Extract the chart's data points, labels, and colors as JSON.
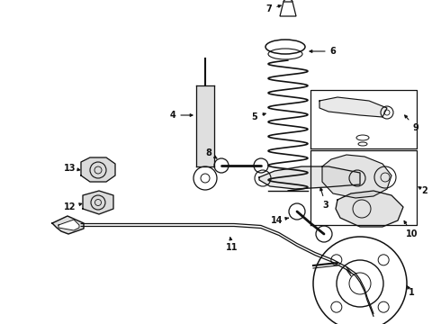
{
  "background_color": "#ffffff",
  "fig_width": 4.9,
  "fig_height": 3.6,
  "dpi": 100,
  "line_color": "#111111",
  "label_color": "#000000",
  "label_fontsize": 7.0
}
